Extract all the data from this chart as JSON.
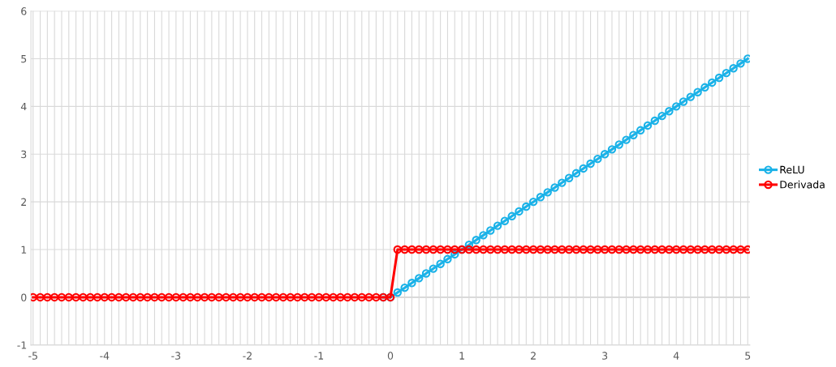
{
  "chart_data": {
    "type": "line",
    "categories": [
      "-5",
      null,
      null,
      null,
      null,
      null,
      null,
      null,
      null,
      null,
      "-4",
      null,
      null,
      null,
      null,
      null,
      null,
      null,
      null,
      null,
      "-3",
      null,
      null,
      null,
      null,
      null,
      null,
      null,
      null,
      null,
      "-2",
      null,
      null,
      null,
      null,
      null,
      null,
      null,
      null,
      null,
      "-1",
      null,
      null,
      null,
      null,
      null,
      null,
      null,
      null,
      null,
      "0",
      null,
      null,
      null,
      null,
      null,
      null,
      null,
      null,
      null,
      "1",
      null,
      null,
      null,
      null,
      null,
      null,
      null,
      null,
      null,
      "2",
      null,
      null,
      null,
      null,
      null,
      null,
      null,
      null,
      null,
      "3",
      null,
      null,
      null,
      null,
      null,
      null,
      null,
      null,
      null,
      "4",
      null,
      null,
      null,
      null,
      null,
      null,
      null,
      null,
      null,
      "5"
    ],
    "series": [
      {
        "name": "ReLU",
        "color": "#1ab2e8",
        "values": [
          null,
          null,
          null,
          null,
          null,
          null,
          null,
          null,
          null,
          null,
          null,
          null,
          null,
          null,
          null,
          null,
          null,
          null,
          null,
          null,
          null,
          null,
          null,
          null,
          null,
          null,
          null,
          null,
          null,
          null,
          null,
          null,
          null,
          null,
          null,
          null,
          null,
          null,
          null,
          null,
          null,
          null,
          null,
          null,
          null,
          null,
          null,
          null,
          null,
          0,
          0,
          0.1,
          0.2,
          0.3,
          0.4,
          0.5,
          0.6,
          0.7,
          0.8,
          0.9,
          1.0,
          1.1,
          1.2,
          1.3,
          1.4,
          1.5,
          1.6,
          1.7,
          1.8,
          1.9,
          2.0,
          2.1,
          2.2,
          2.3,
          2.4,
          2.5,
          2.6,
          2.7,
          2.8,
          2.9,
          3.0,
          3.1,
          3.2,
          3.3,
          3.4,
          3.5,
          3.6,
          3.7,
          3.8,
          3.9,
          4.0,
          4.1,
          4.2,
          4.3,
          4.4,
          4.5,
          4.6,
          4.7,
          4.8,
          4.9,
          5.0
        ]
      },
      {
        "name": "Derivada",
        "color": "#ff0000",
        "values": [
          0,
          0,
          0,
          0,
          0,
          0,
          0,
          0,
          0,
          0,
          0,
          0,
          0,
          0,
          0,
          0,
          0,
          0,
          0,
          0,
          0,
          0,
          0,
          0,
          0,
          0,
          0,
          0,
          0,
          0,
          0,
          0,
          0,
          0,
          0,
          0,
          0,
          0,
          0,
          0,
          0,
          0,
          0,
          0,
          0,
          0,
          0,
          0,
          0,
          0,
          0,
          1,
          1,
          1,
          1,
          1,
          1,
          1,
          1,
          1,
          1,
          1,
          1,
          1,
          1,
          1,
          1,
          1,
          1,
          1,
          1,
          1,
          1,
          1,
          1,
          1,
          1,
          1,
          1,
          1,
          1,
          1,
          1,
          1,
          1,
          1,
          1,
          1,
          1,
          1,
          1,
          1,
          1,
          1,
          1,
          1,
          1,
          1,
          1,
          1,
          1
        ]
      }
    ],
    "ylim": [
      -1,
      6
    ],
    "yticks": [
      -1,
      0,
      1,
      2,
      3,
      4,
      5,
      6
    ],
    "grid": true,
    "legend": "right",
    "marker": "circle",
    "line_style": "solid"
  }
}
